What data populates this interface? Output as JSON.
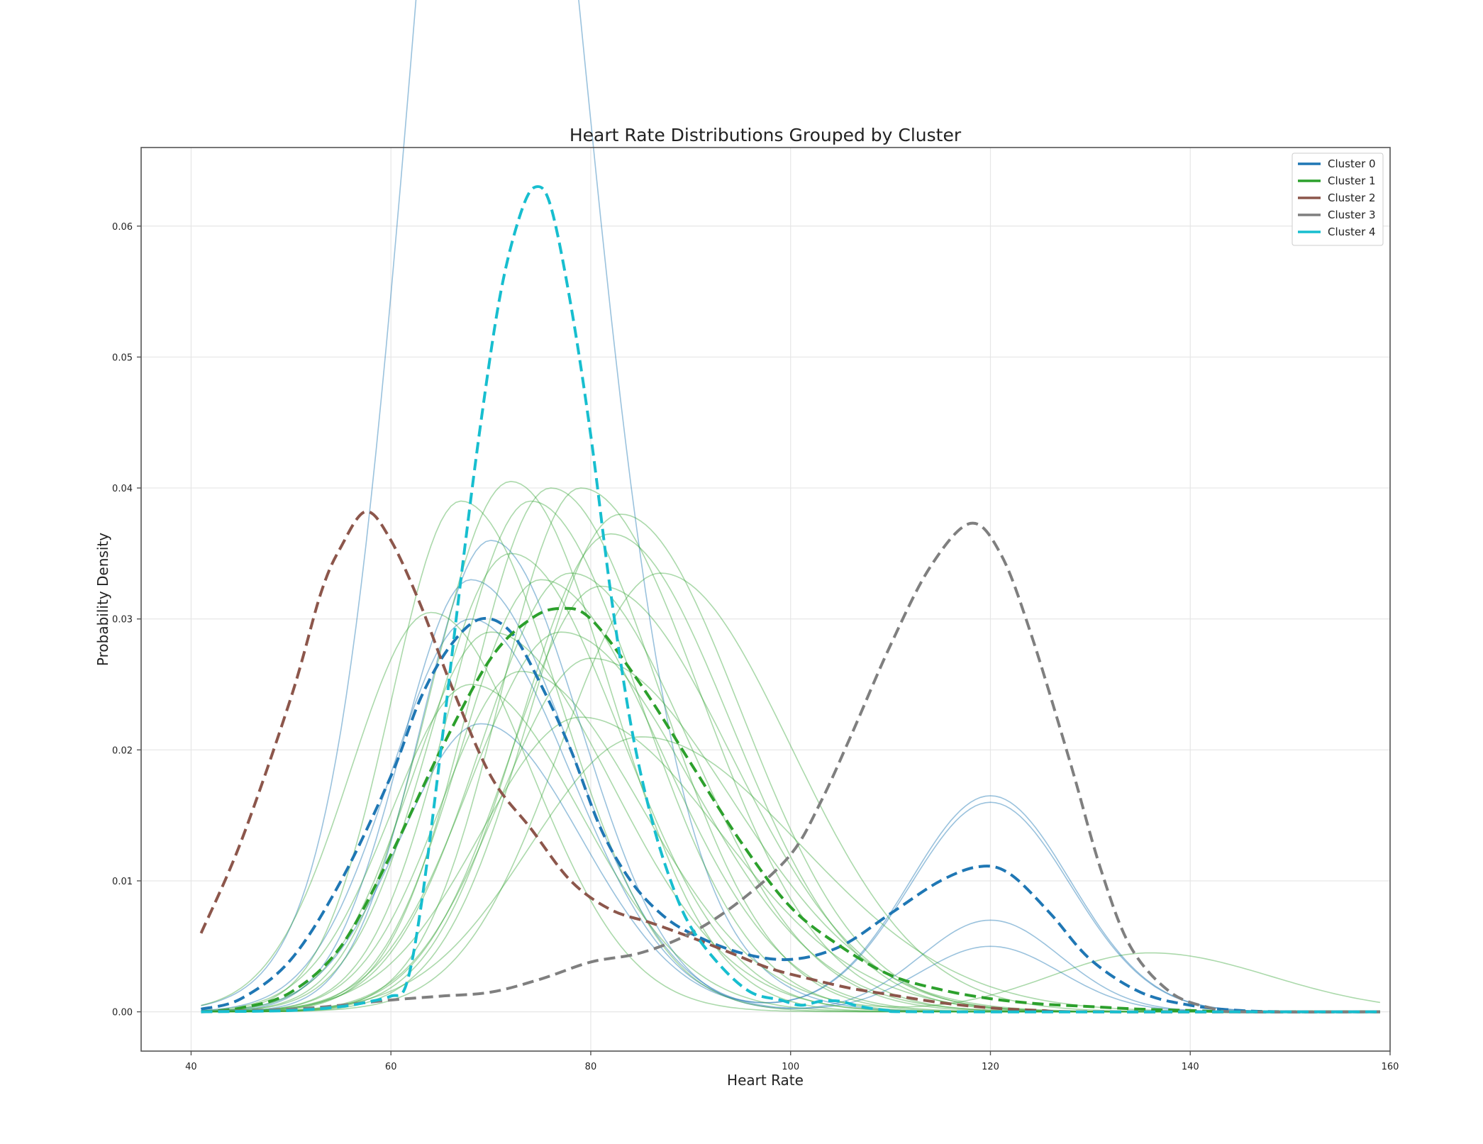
{
  "chart_data": {
    "type": "line",
    "title": "Heart Rate Distributions Grouped by Cluster",
    "xlabel": "Heart Rate",
    "ylabel": "Probability Density",
    "xlim": [
      35,
      160
    ],
    "ylim": [
      -0.003,
      0.066
    ],
    "x_ticks": [
      40,
      60,
      80,
      100,
      120,
      140,
      160
    ],
    "x_tick_labels": [
      "40",
      "60",
      "80",
      "100",
      "120",
      "140",
      "160"
    ],
    "y_ticks": [
      0.0,
      0.01,
      0.02,
      0.03,
      0.04,
      0.05,
      0.06
    ],
    "y_tick_labels": [
      "0.00",
      "0.01",
      "0.02",
      "0.03",
      "0.04",
      "0.05",
      "0.06"
    ],
    "grid": true,
    "legend_position": "top-right",
    "legend": [
      {
        "label": "Cluster 0",
        "color": "#1f77b4"
      },
      {
        "label": "Cluster 1",
        "color": "#2ca02c"
      },
      {
        "label": "Cluster 2",
        "color": "#8c564b"
      },
      {
        "label": "Cluster 3",
        "color": "#7f7f7f"
      },
      {
        "label": "Cluster 4",
        "color": "#17becf"
      }
    ],
    "mean_series": [
      {
        "cluster": 0,
        "color": "#1f77b4",
        "style": "dashed",
        "points": [
          [
            41,
            0.0002
          ],
          [
            45,
            0.001
          ],
          [
            50,
            0.004
          ],
          [
            55,
            0.01
          ],
          [
            60,
            0.018
          ],
          [
            63,
            0.024
          ],
          [
            66,
            0.028
          ],
          [
            69,
            0.03
          ],
          [
            72,
            0.029
          ],
          [
            75,
            0.025
          ],
          [
            78,
            0.02
          ],
          [
            81,
            0.014
          ],
          [
            84,
            0.01
          ],
          [
            87,
            0.0075
          ],
          [
            90,
            0.006
          ],
          [
            95,
            0.0045
          ],
          [
            100,
            0.004
          ],
          [
            105,
            0.005
          ],
          [
            110,
            0.0075
          ],
          [
            115,
            0.01
          ],
          [
            119,
            0.0111
          ],
          [
            122,
            0.0105
          ],
          [
            126,
            0.0075
          ],
          [
            130,
            0.004
          ],
          [
            135,
            0.0015
          ],
          [
            140,
            0.0005
          ],
          [
            145,
            0.0001
          ],
          [
            150,
            0
          ],
          [
            159,
            0
          ]
        ]
      },
      {
        "cluster": 1,
        "color": "#2ca02c",
        "style": "dashed",
        "points": [
          [
            41,
            0
          ],
          [
            45,
            0.0003
          ],
          [
            50,
            0.0015
          ],
          [
            55,
            0.005
          ],
          [
            60,
            0.012
          ],
          [
            65,
            0.02
          ],
          [
            70,
            0.027
          ],
          [
            74,
            0.03
          ],
          [
            77,
            0.0308
          ],
          [
            80,
            0.03
          ],
          [
            85,
            0.025
          ],
          [
            90,
            0.019
          ],
          [
            95,
            0.013
          ],
          [
            100,
            0.008
          ],
          [
            105,
            0.005
          ],
          [
            110,
            0.0028
          ],
          [
            115,
            0.0017
          ],
          [
            120,
            0.001
          ],
          [
            125,
            0.0006
          ],
          [
            130,
            0.0004
          ],
          [
            135,
            0.0002
          ],
          [
            140,
            0.0001
          ],
          [
            145,
            0
          ],
          [
            159,
            0
          ]
        ]
      },
      {
        "cluster": 2,
        "color": "#8c564b",
        "style": "dashed",
        "points": [
          [
            41,
            0.006
          ],
          [
            45,
            0.013
          ],
          [
            50,
            0.024
          ],
          [
            53,
            0.032
          ],
          [
            55,
            0.0355
          ],
          [
            57.5,
            0.0382
          ],
          [
            60,
            0.036
          ],
          [
            63,
            0.031
          ],
          [
            66,
            0.025
          ],
          [
            70,
            0.018
          ],
          [
            74,
            0.014
          ],
          [
            78,
            0.01
          ],
          [
            82,
            0.0078
          ],
          [
            86,
            0.0068
          ],
          [
            90,
            0.0057
          ],
          [
            94,
            0.0045
          ],
          [
            98,
            0.0033
          ],
          [
            102,
            0.0025
          ],
          [
            106,
            0.0018
          ],
          [
            110,
            0.0013
          ],
          [
            115,
            0.0007
          ],
          [
            120,
            0.0003
          ],
          [
            125,
            0.0001
          ],
          [
            130,
            0
          ],
          [
            159,
            0
          ]
        ]
      },
      {
        "cluster": 3,
        "color": "#7f7f7f",
        "style": "dashed",
        "points": [
          [
            41,
            0
          ],
          [
            50,
            0.0002
          ],
          [
            55,
            0.0005
          ],
          [
            60,
            0.0009
          ],
          [
            65,
            0.0012
          ],
          [
            70,
            0.0015
          ],
          [
            75,
            0.0025
          ],
          [
            80,
            0.0038
          ],
          [
            85,
            0.0045
          ],
          [
            90,
            0.006
          ],
          [
            95,
            0.0085
          ],
          [
            100,
            0.012
          ],
          [
            103,
            0.016
          ],
          [
            106,
            0.021
          ],
          [
            110,
            0.028
          ],
          [
            114,
            0.034
          ],
          [
            118,
            0.0373
          ],
          [
            121,
            0.035
          ],
          [
            124,
            0.029
          ],
          [
            128,
            0.019
          ],
          [
            131,
            0.011
          ],
          [
            134,
            0.005
          ],
          [
            138,
            0.0015
          ],
          [
            142,
            0.0003
          ],
          [
            145,
            0
          ],
          [
            159,
            0
          ]
        ]
      },
      {
        "cluster": 4,
        "color": "#17becf",
        "style": "dashed",
        "points": [
          [
            41,
            0
          ],
          [
            50,
            0.0001
          ],
          [
            55,
            0.0004
          ],
          [
            58,
            0.0008
          ],
          [
            60,
            0.0012
          ],
          [
            61.5,
            0.002
          ],
          [
            63,
            0.008
          ],
          [
            65,
            0.02
          ],
          [
            67,
            0.033
          ],
          [
            69,
            0.045
          ],
          [
            71,
            0.055
          ],
          [
            73,
            0.061
          ],
          [
            74.5,
            0.063
          ],
          [
            76,
            0.0615
          ],
          [
            78,
            0.054
          ],
          [
            80,
            0.044
          ],
          [
            82,
            0.032
          ],
          [
            84,
            0.022
          ],
          [
            86,
            0.015
          ],
          [
            88,
            0.01
          ],
          [
            90,
            0.0065
          ],
          [
            93,
            0.0035
          ],
          [
            96,
            0.0015
          ],
          [
            99,
            0.0009
          ],
          [
            101,
            0.0005
          ],
          [
            103,
            0.0008
          ],
          [
            105,
            0.0008
          ],
          [
            107,
            0.0004
          ],
          [
            110,
            0.0001
          ],
          [
            115,
            0
          ],
          [
            159,
            0
          ]
        ]
      }
    ],
    "member_series": [
      {
        "cluster": 0,
        "color": "#1f77b4",
        "alpha": 0.45,
        "peaks": [
          [
            69,
            0.042,
            7,
            9
          ],
          [
            71,
            0.0385,
            7,
            8
          ],
          [
            68,
            0.022,
            9,
            12
          ],
          [
            71,
            0.019,
            10,
            12
          ]
        ]
      },
      {
        "cluster": 0,
        "color": "#1f77b4",
        "alpha": 0.45,
        "peaks": [
          [
            68,
            0.03,
            8,
            10
          ],
          [
            120,
            0.0165,
            8,
            8
          ]
        ]
      },
      {
        "cluster": 0,
        "color": "#1f77b4",
        "alpha": 0.45,
        "peaks": [
          [
            69,
            0.022,
            8,
            10
          ],
          [
            120,
            0.016,
            8,
            8
          ]
        ]
      },
      {
        "cluster": 0,
        "color": "#1f77b4",
        "alpha": 0.45,
        "peaks": [
          [
            70,
            0.036,
            7,
            9
          ],
          [
            120,
            0.007,
            7,
            7
          ]
        ]
      },
      {
        "cluster": 0,
        "color": "#1f77b4",
        "alpha": 0.45,
        "peaks": [
          [
            68,
            0.033,
            7,
            10
          ],
          [
            120,
            0.005,
            7,
            7
          ]
        ]
      },
      {
        "cluster": 1,
        "color": "#2ca02c",
        "alpha": 0.4,
        "peaks": [
          [
            64,
            0.0305,
            8,
            10
          ]
        ]
      },
      {
        "cluster": 1,
        "color": "#2ca02c",
        "alpha": 0.4,
        "peaks": [
          [
            67,
            0.039,
            7,
            10
          ]
        ]
      },
      {
        "cluster": 1,
        "color": "#2ca02c",
        "alpha": 0.4,
        "peaks": [
          [
            72,
            0.0405,
            8,
            10
          ]
        ]
      },
      {
        "cluster": 1,
        "color": "#2ca02c",
        "alpha": 0.4,
        "peaks": [
          [
            74,
            0.039,
            8,
            11
          ]
        ]
      },
      {
        "cluster": 1,
        "color": "#2ca02c",
        "alpha": 0.4,
        "peaks": [
          [
            76,
            0.04,
            8,
            11
          ]
        ]
      },
      {
        "cluster": 1,
        "color": "#2ca02c",
        "alpha": 0.4,
        "peaks": [
          [
            79,
            0.04,
            8,
            12
          ]
        ]
      },
      {
        "cluster": 1,
        "color": "#2ca02c",
        "alpha": 0.4,
        "peaks": [
          [
            83,
            0.038,
            9,
            12
          ]
        ]
      },
      {
        "cluster": 1,
        "color": "#2ca02c",
        "alpha": 0.4,
        "peaks": [
          [
            82,
            0.0365,
            9,
            12
          ]
        ]
      },
      {
        "cluster": 1,
        "color": "#2ca02c",
        "alpha": 0.4,
        "peaks": [
          [
            87,
            0.0335,
            10,
            13
          ]
        ]
      },
      {
        "cluster": 1,
        "color": "#2ca02c",
        "alpha": 0.4,
        "peaks": [
          [
            72,
            0.035,
            8,
            11
          ]
        ]
      },
      {
        "cluster": 1,
        "color": "#2ca02c",
        "alpha": 0.4,
        "peaks": [
          [
            78,
            0.0335,
            9,
            12
          ]
        ]
      },
      {
        "cluster": 1,
        "color": "#2ca02c",
        "alpha": 0.4,
        "peaks": [
          [
            81,
            0.0325,
            9,
            13
          ]
        ]
      },
      {
        "cluster": 1,
        "color": "#2ca02c",
        "alpha": 0.4,
        "peaks": [
          [
            75,
            0.033,
            8,
            12
          ]
        ]
      },
      {
        "cluster": 1,
        "color": "#2ca02c",
        "alpha": 0.4,
        "peaks": [
          [
            70,
            0.029,
            8,
            12
          ]
        ]
      },
      {
        "cluster": 1,
        "color": "#2ca02c",
        "alpha": 0.4,
        "peaks": [
          [
            77,
            0.029,
            9,
            13
          ]
        ]
      },
      {
        "cluster": 1,
        "color": "#2ca02c",
        "alpha": 0.4,
        "peaks": [
          [
            79,
            0.0225,
            10,
            14
          ]
        ]
      },
      {
        "cluster": 1,
        "color": "#2ca02c",
        "alpha": 0.4,
        "peaks": [
          [
            85,
            0.021,
            11,
            16
          ]
        ]
      },
      {
        "cluster": 1,
        "color": "#2ca02c",
        "alpha": 0.4,
        "peaks": [
          [
            73,
            0.026,
            8,
            12
          ],
          [
            136,
            0.0045,
            10,
            12
          ]
        ]
      },
      {
        "cluster": 1,
        "color": "#2ca02c",
        "alpha": 0.4,
        "peaks": [
          [
            68,
            0.025,
            8,
            11
          ]
        ]
      },
      {
        "cluster": 1,
        "color": "#2ca02c",
        "alpha": 0.4,
        "peaks": [
          [
            80,
            0.027,
            9,
            14
          ]
        ]
      }
    ]
  }
}
